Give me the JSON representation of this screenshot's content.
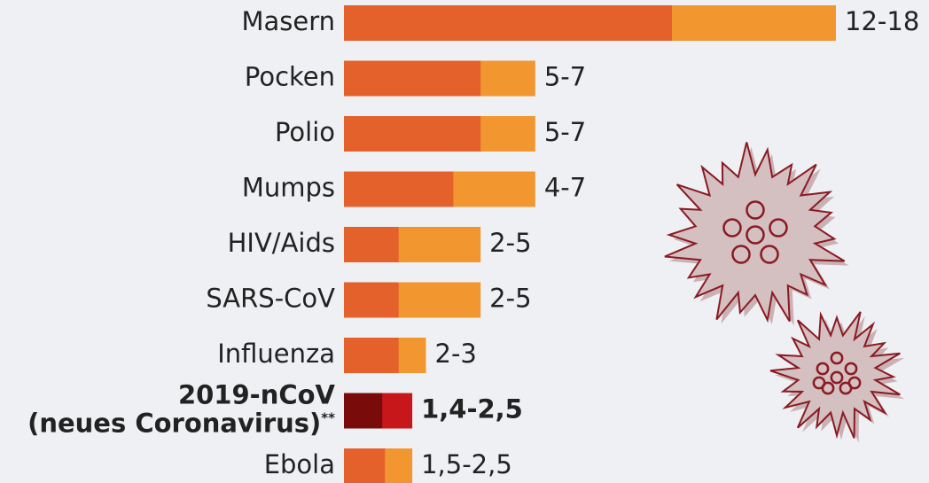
{
  "chart_data": {
    "type": "range-bar",
    "categories": [
      "Masern",
      "Pocken",
      "Polio",
      "Mumps",
      "HIV/Aids",
      "SARS-CoV",
      "Influenza",
      "2019-nCoV\n(neues Coronavirus)**",
      "Ebola"
    ],
    "series": [
      {
        "color": "#f2962f",
        "values": [
          18,
          7,
          7,
          7,
          5,
          5,
          3,
          2.5,
          2.5
        ]
      },
      {
        "color": "#e4612b",
        "values": [
          12,
          5,
          5,
          4,
          2,
          2,
          2,
          1.4,
          1.5
        ]
      }
    ],
    "range_labels": [
      "12-18",
      "5-7",
      "5-7",
      "4-7",
      "2-5",
      "2-5",
      "2-3",
      "1,4-2,5",
      "1,5-2,5"
    ],
    "highlight_index": 7,
    "highlight_colors": [
      "#c8171b",
      "#7a0b0b"
    ],
    "xlim": [
      0,
      18
    ]
  }
}
